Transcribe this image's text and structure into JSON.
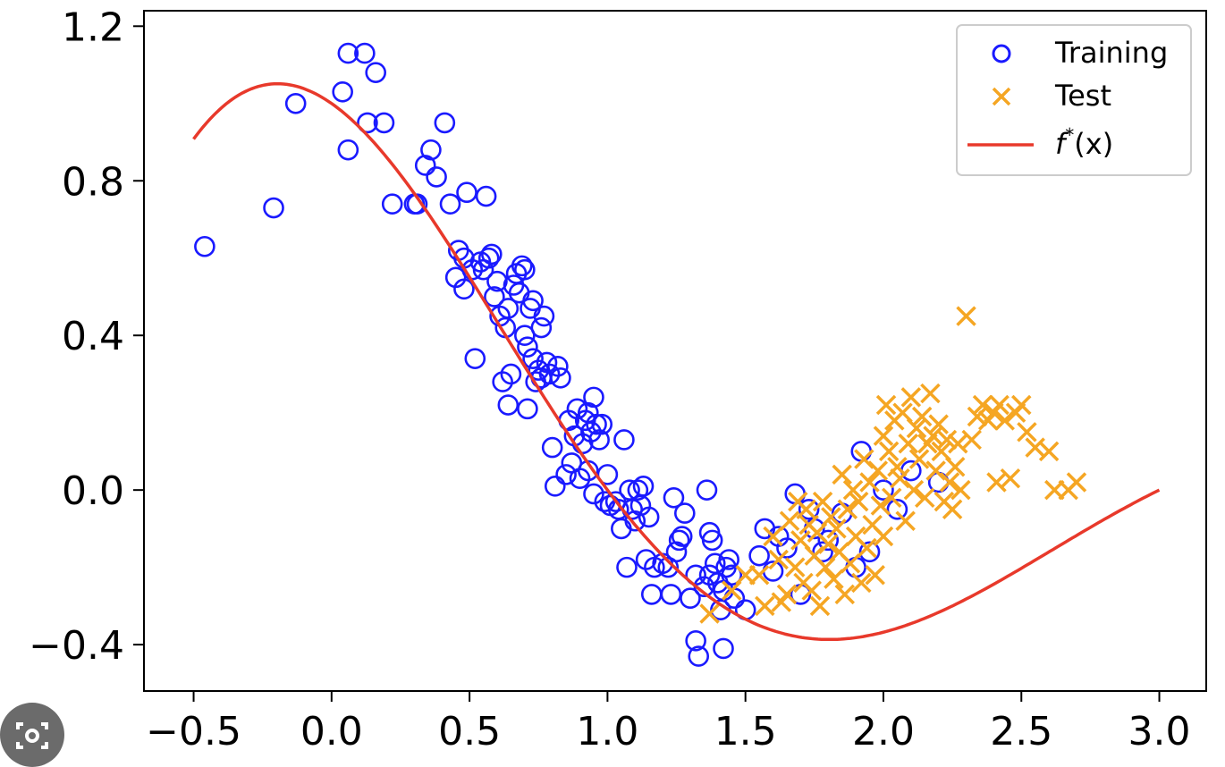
{
  "chart_data": {
    "type": "scatter",
    "title": "",
    "xlabel": "",
    "ylabel": "",
    "xlim": [
      -0.68,
      3.17
    ],
    "ylim": [
      -0.52,
      1.24
    ],
    "x_ticks": [
      -0.5,
      0.0,
      0.5,
      1.0,
      1.5,
      2.0,
      2.5,
      3.0
    ],
    "x_tick_labels": [
      "−0.5",
      "0.0",
      "0.5",
      "1.0",
      "1.5",
      "2.0",
      "2.5",
      "3.0"
    ],
    "y_ticks": [
      -0.4,
      0.0,
      0.4,
      0.8,
      1.2
    ],
    "y_tick_labels": [
      "−0.4",
      "0.0",
      "0.4",
      "0.8",
      "1.2"
    ],
    "grid": false,
    "legend_position": "top-right",
    "colors": {
      "training": "#1a1aff",
      "test": "#f5a623",
      "curve": "#e8392b"
    },
    "series": [
      {
        "name": "Training",
        "marker": "open-circle",
        "points": [
          [
            -0.46,
            0.63
          ],
          [
            -0.21,
            0.73
          ],
          [
            -0.13,
            1.0
          ],
          [
            0.04,
            1.03
          ],
          [
            0.06,
            0.88
          ],
          [
            0.06,
            1.13
          ],
          [
            0.12,
            1.13
          ],
          [
            0.13,
            0.95
          ],
          [
            0.16,
            1.08
          ],
          [
            0.19,
            0.95
          ],
          [
            0.22,
            0.74
          ],
          [
            0.3,
            0.74
          ],
          [
            0.31,
            0.74
          ],
          [
            0.34,
            0.84
          ],
          [
            0.36,
            0.88
          ],
          [
            0.38,
            0.81
          ],
          [
            0.41,
            0.95
          ],
          [
            0.43,
            0.74
          ],
          [
            0.45,
            0.55
          ],
          [
            0.46,
            0.62
          ],
          [
            0.48,
            0.6
          ],
          [
            0.48,
            0.52
          ],
          [
            0.49,
            0.77
          ],
          [
            0.51,
            0.57
          ],
          [
            0.52,
            0.34
          ],
          [
            0.54,
            0.59
          ],
          [
            0.55,
            0.57
          ],
          [
            0.56,
            0.76
          ],
          [
            0.57,
            0.6
          ],
          [
            0.58,
            0.61
          ],
          [
            0.59,
            0.5
          ],
          [
            0.6,
            0.54
          ],
          [
            0.61,
            0.45
          ],
          [
            0.62,
            0.28
          ],
          [
            0.63,
            0.42
          ],
          [
            0.64,
            0.47
          ],
          [
            0.64,
            0.22
          ],
          [
            0.65,
            0.3
          ],
          [
            0.66,
            0.53
          ],
          [
            0.67,
            0.56
          ],
          [
            0.68,
            0.51
          ],
          [
            0.69,
            0.58
          ],
          [
            0.7,
            0.57
          ],
          [
            0.7,
            0.4
          ],
          [
            0.71,
            0.37
          ],
          [
            0.71,
            0.21
          ],
          [
            0.72,
            0.47
          ],
          [
            0.73,
            0.49
          ],
          [
            0.73,
            0.34
          ],
          [
            0.74,
            0.28
          ],
          [
            0.75,
            0.31
          ],
          [
            0.76,
            0.42
          ],
          [
            0.76,
            0.29
          ],
          [
            0.77,
            0.45
          ],
          [
            0.78,
            0.33
          ],
          [
            0.79,
            0.3
          ],
          [
            0.8,
            0.11
          ],
          [
            0.81,
            0.01
          ],
          [
            0.82,
            0.32
          ],
          [
            0.83,
            0.29
          ],
          [
            0.85,
            0.04
          ],
          [
            0.86,
            0.18
          ],
          [
            0.87,
            0.07
          ],
          [
            0.88,
            0.14
          ],
          [
            0.89,
            0.21
          ],
          [
            0.9,
            0.03
          ],
          [
            0.91,
            0.12
          ],
          [
            0.92,
            0.18
          ],
          [
            0.93,
            0.2
          ],
          [
            0.93,
            0.05
          ],
          [
            0.94,
            0.15
          ],
          [
            0.95,
            0.24
          ],
          [
            0.95,
            -0.01
          ],
          [
            0.96,
            0.17
          ],
          [
            0.97,
            0.13
          ],
          [
            0.98,
            0.17
          ],
          [
            0.99,
            -0.03
          ],
          [
            1.0,
            0.04
          ],
          [
            1.01,
            -0.04
          ],
          [
            1.03,
            -0.03
          ],
          [
            1.04,
            -0.05
          ],
          [
            1.05,
            -0.1
          ],
          [
            1.06,
            0.13
          ],
          [
            1.07,
            -0.2
          ],
          [
            1.08,
            0.0
          ],
          [
            1.09,
            -0.05
          ],
          [
            1.1,
            -0.08
          ],
          [
            1.11,
            0.0
          ],
          [
            1.12,
            -0.04
          ],
          [
            1.13,
            0.01
          ],
          [
            1.14,
            -0.18
          ],
          [
            1.15,
            -0.07
          ],
          [
            1.16,
            -0.27
          ],
          [
            1.17,
            -0.2
          ],
          [
            1.2,
            -0.19
          ],
          [
            1.22,
            -0.2
          ],
          [
            1.23,
            -0.27
          ],
          [
            1.24,
            -0.02
          ],
          [
            1.25,
            -0.16
          ],
          [
            1.26,
            -0.13
          ],
          [
            1.27,
            -0.12
          ],
          [
            1.28,
            -0.06
          ],
          [
            1.3,
            -0.28
          ],
          [
            1.32,
            -0.22
          ],
          [
            1.32,
            -0.39
          ],
          [
            1.33,
            -0.43
          ],
          [
            1.35,
            -0.25
          ],
          [
            1.36,
            0.0
          ],
          [
            1.37,
            -0.11
          ],
          [
            1.37,
            -0.22
          ],
          [
            1.38,
            -0.13
          ],
          [
            1.39,
            -0.19
          ],
          [
            1.4,
            -0.24
          ],
          [
            1.41,
            -0.31
          ],
          [
            1.42,
            -0.26
          ],
          [
            1.42,
            -0.41
          ],
          [
            1.43,
            -0.2
          ],
          [
            1.44,
            -0.18
          ],
          [
            1.45,
            -0.22
          ],
          [
            1.46,
            -0.28
          ],
          [
            1.5,
            -0.31
          ],
          [
            1.55,
            -0.17
          ],
          [
            1.57,
            -0.1
          ],
          [
            1.6,
            -0.21
          ],
          [
            1.62,
            -0.12
          ],
          [
            1.65,
            -0.15
          ],
          [
            1.68,
            -0.01
          ],
          [
            1.7,
            -0.27
          ],
          [
            1.73,
            -0.05
          ],
          [
            1.75,
            -0.1
          ],
          [
            1.78,
            -0.16
          ],
          [
            1.8,
            -0.13
          ],
          [
            1.85,
            -0.06
          ],
          [
            1.9,
            -0.2
          ],
          [
            1.92,
            0.1
          ],
          [
            1.95,
            -0.16
          ],
          [
            2.0,
            0.0
          ],
          [
            2.05,
            -0.05
          ],
          [
            2.1,
            0.05
          ],
          [
            2.2,
            0.02
          ]
        ]
      },
      {
        "name": "Test",
        "marker": "x",
        "points": [
          [
            1.37,
            -0.32
          ],
          [
            1.45,
            -0.26
          ],
          [
            1.5,
            -0.22
          ],
          [
            1.55,
            -0.22
          ],
          [
            1.57,
            -0.3
          ],
          [
            1.6,
            -0.12
          ],
          [
            1.62,
            -0.18
          ],
          [
            1.63,
            -0.29
          ],
          [
            1.65,
            -0.27
          ],
          [
            1.66,
            -0.08
          ],
          [
            1.68,
            -0.2
          ],
          [
            1.69,
            -0.03
          ],
          [
            1.7,
            -0.13
          ],
          [
            1.71,
            -0.24
          ],
          [
            1.72,
            -0.05
          ],
          [
            1.73,
            -0.09
          ],
          [
            1.74,
            -0.26
          ],
          [
            1.75,
            -0.17
          ],
          [
            1.76,
            -0.11
          ],
          [
            1.77,
            -0.3
          ],
          [
            1.78,
            -0.03
          ],
          [
            1.79,
            -0.2
          ],
          [
            1.8,
            -0.14
          ],
          [
            1.81,
            -0.07
          ],
          [
            1.82,
            -0.23
          ],
          [
            1.83,
            -0.1
          ],
          [
            1.84,
            -0.16
          ],
          [
            1.85,
            0.04
          ],
          [
            1.86,
            -0.27
          ],
          [
            1.87,
            -0.05
          ],
          [
            1.88,
            -0.19
          ],
          [
            1.89,
            0.0
          ],
          [
            1.9,
            -0.12
          ],
          [
            1.91,
            -0.03
          ],
          [
            1.92,
            -0.24
          ],
          [
            1.93,
            0.08
          ],
          [
            1.94,
            -0.15
          ],
          [
            1.95,
            0.02
          ],
          [
            1.96,
            -0.09
          ],
          [
            1.97,
            -0.22
          ],
          [
            1.98,
            0.05
          ],
          [
            1.99,
            -0.04
          ],
          [
            2.0,
            0.14
          ],
          [
            2.0,
            -0.12
          ],
          [
            2.01,
            0.22
          ],
          [
            2.02,
            0.1
          ],
          [
            2.03,
            -0.02
          ],
          [
            2.04,
            0.18
          ],
          [
            2.05,
            0.06
          ],
          [
            2.06,
            0.03
          ],
          [
            2.07,
            0.2
          ],
          [
            2.08,
            -0.08
          ],
          [
            2.09,
            0.12
          ],
          [
            2.1,
            0.24
          ],
          [
            2.11,
            0.0
          ],
          [
            2.12,
            0.16
          ],
          [
            2.13,
            0.08
          ],
          [
            2.14,
            0.19
          ],
          [
            2.15,
            -0.02
          ],
          [
            2.16,
            0.12
          ],
          [
            2.17,
            0.25
          ],
          [
            2.18,
            0.14
          ],
          [
            2.19,
            0.05
          ],
          [
            2.2,
            0.17
          ],
          [
            2.21,
            0.1
          ],
          [
            2.22,
            -0.03
          ],
          [
            2.23,
            0.13
          ],
          [
            2.24,
            0.02
          ],
          [
            2.25,
            -0.05
          ],
          [
            2.26,
            0.06
          ],
          [
            2.27,
            0.12
          ],
          [
            2.28,
            0.0
          ],
          [
            2.3,
            0.45
          ],
          [
            2.32,
            0.13
          ],
          [
            2.34,
            0.19
          ],
          [
            2.36,
            0.22
          ],
          [
            2.38,
            0.18
          ],
          [
            2.4,
            0.2
          ],
          [
            2.41,
            0.02
          ],
          [
            2.42,
            0.22
          ],
          [
            2.44,
            0.18
          ],
          [
            2.46,
            0.03
          ],
          [
            2.48,
            0.2
          ],
          [
            2.5,
            0.22
          ],
          [
            2.52,
            0.15
          ],
          [
            2.55,
            0.11
          ],
          [
            2.6,
            0.1
          ],
          [
            2.62,
            0.0
          ],
          [
            2.67,
            0.0
          ],
          [
            2.7,
            0.02
          ]
        ]
      },
      {
        "name": "f^*(x)",
        "marker": "line",
        "function": "exp(-x/2)*cos(x*pi/2)",
        "domain": [
          -0.5,
          3.0
        ]
      }
    ],
    "legend": {
      "entries": [
        {
          "label": "Training",
          "series": "Training"
        },
        {
          "label": "Test",
          "series": "Test"
        },
        {
          "label_prefix": "f",
          "label_sup": "*",
          "label_suffix": "(x)",
          "series": "f^*(x)"
        }
      ]
    }
  }
}
